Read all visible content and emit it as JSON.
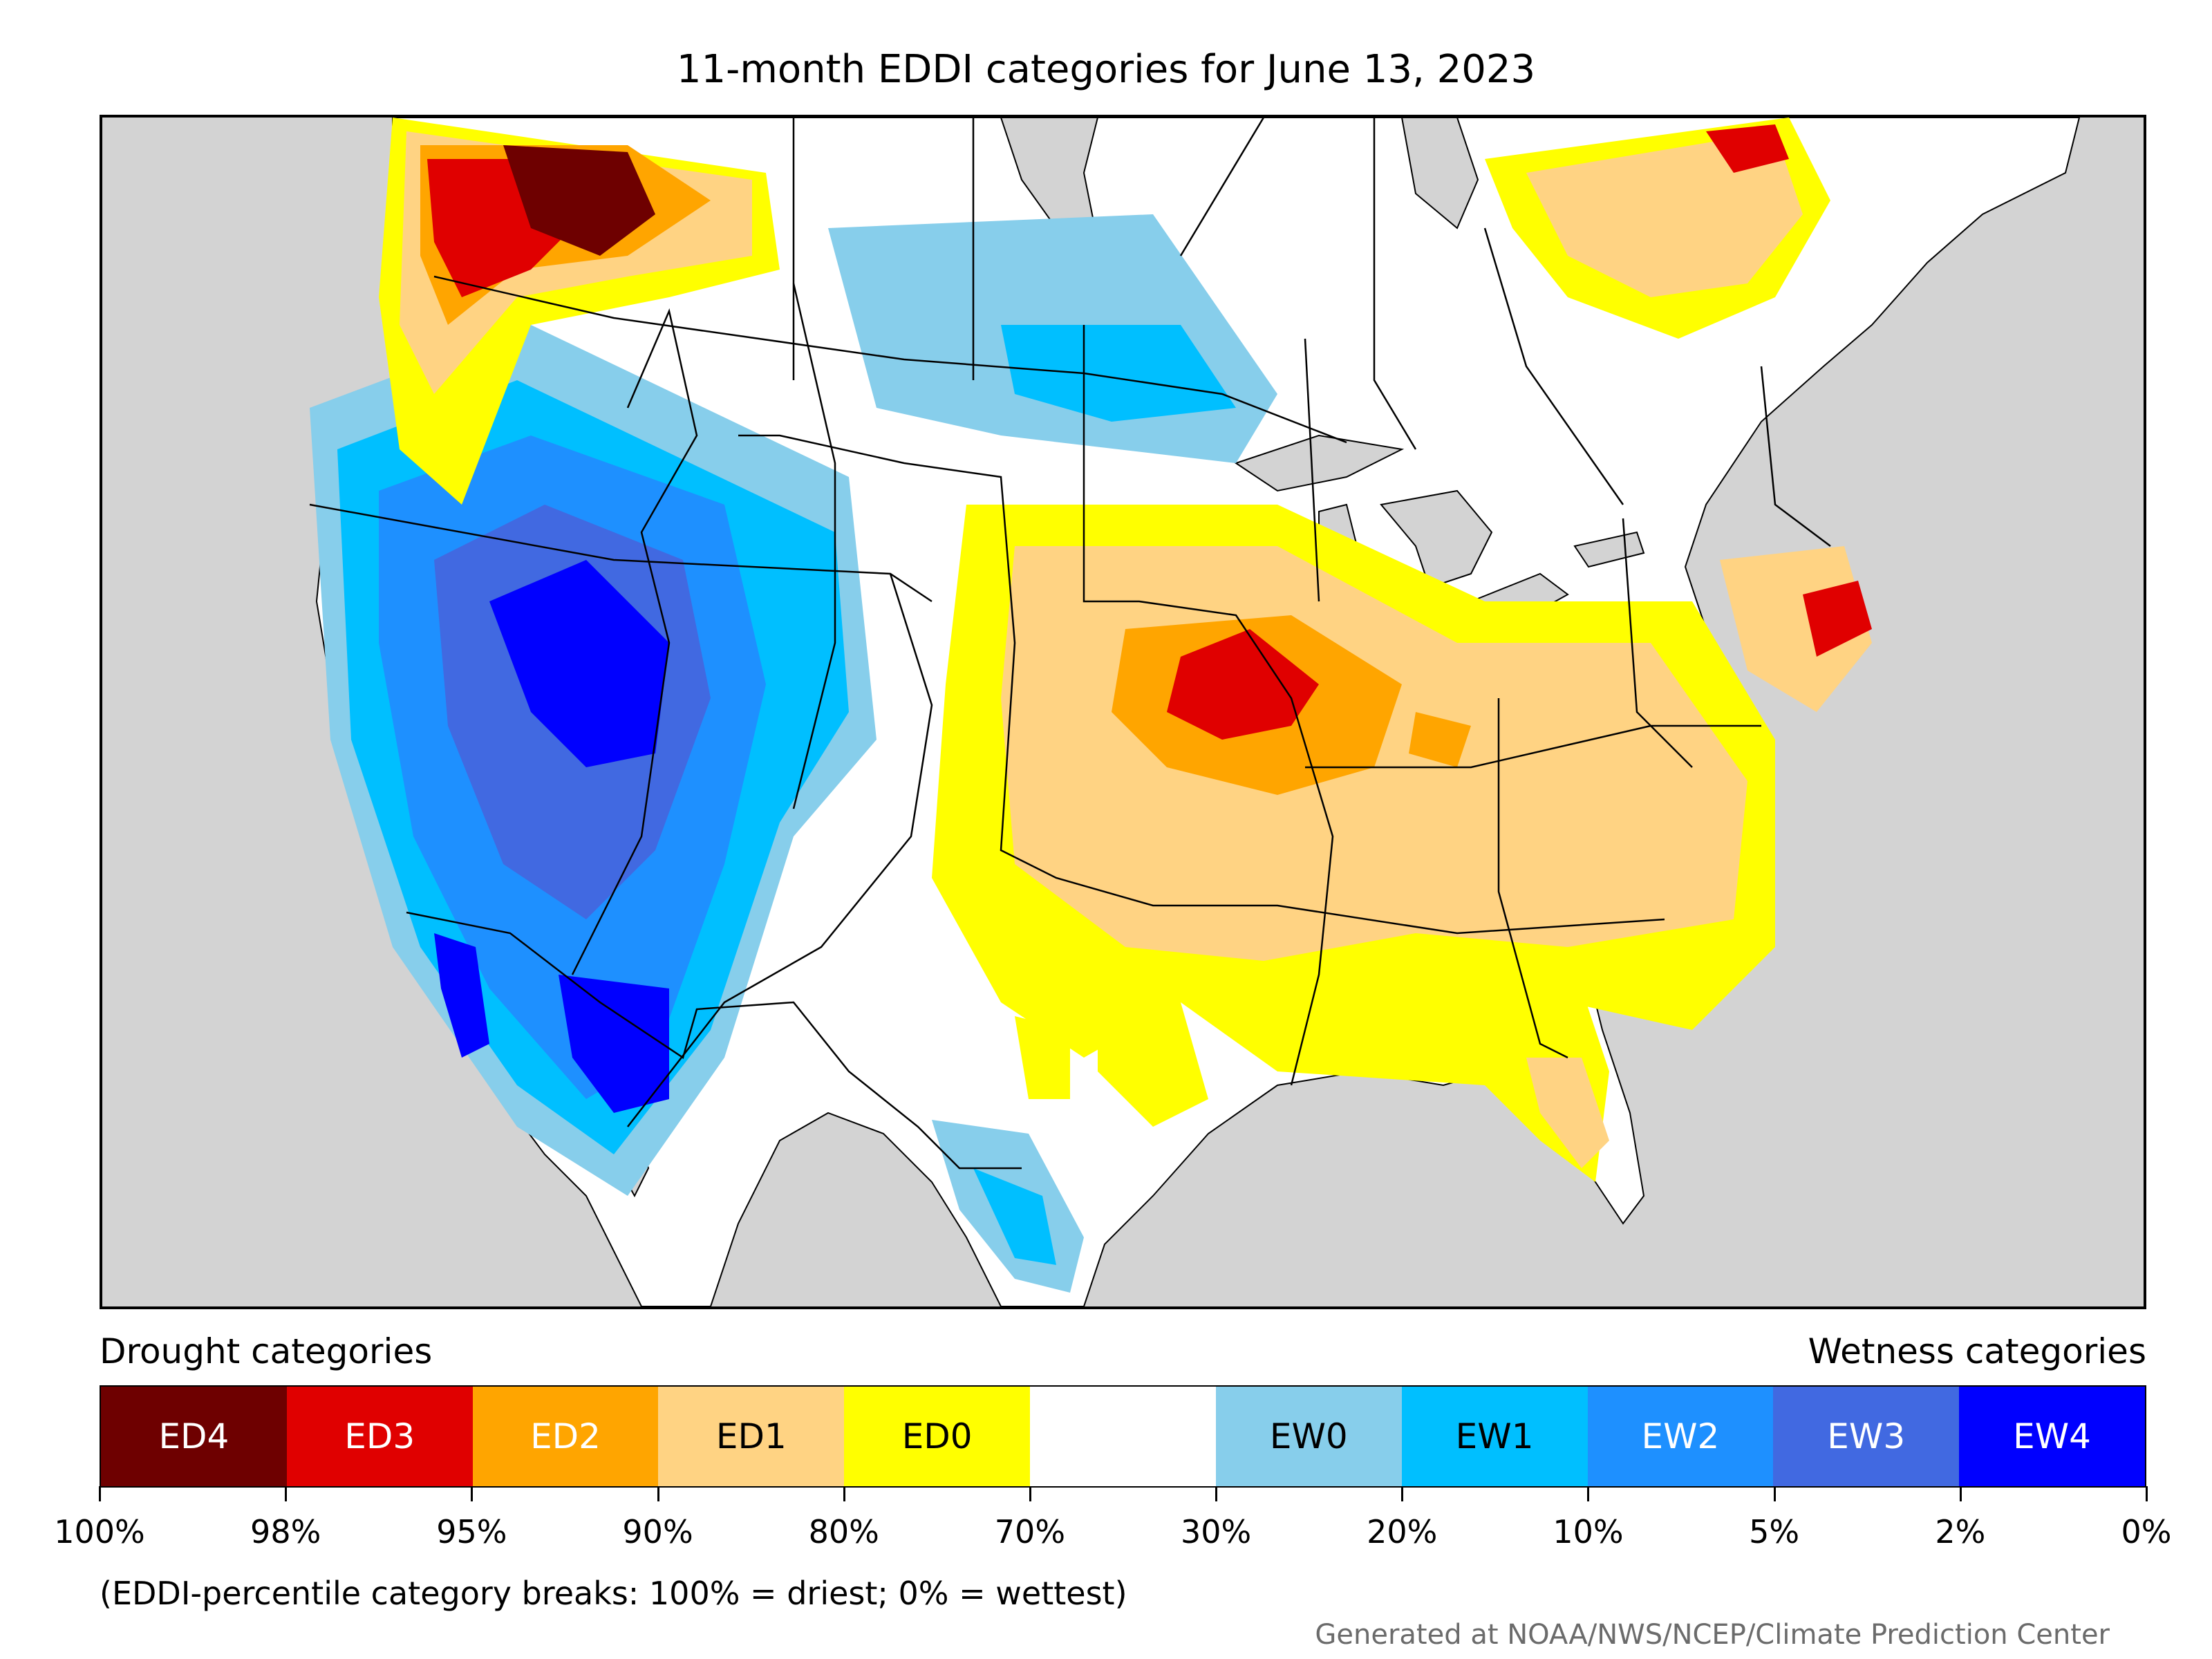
{
  "title": "11-month EDDI categories for June 13, 2023",
  "legend": {
    "drought_heading": "Drought categories",
    "wetness_heading": "Wetness categories",
    "categories": [
      {
        "label": "ED4",
        "color": "#6e0000",
        "text_color": "#ffffff"
      },
      {
        "label": "ED3",
        "color": "#e00000",
        "text_color": "#ffffff"
      },
      {
        "label": "ED2",
        "color": "#ffa500",
        "text_color": "#ffffff"
      },
      {
        "label": "ED1",
        "color": "#ffd383",
        "text_color": "#000000"
      },
      {
        "label": "ED0",
        "color": "#ffff00",
        "text_color": "#000000"
      },
      {
        "label": "",
        "color": "#ffffff",
        "text_color": "#000000"
      },
      {
        "label": "EW0",
        "color": "#87ceeb",
        "text_color": "#000000"
      },
      {
        "label": "EW1",
        "color": "#00bfff",
        "text_color": "#000000"
      },
      {
        "label": "EW2",
        "color": "#1e90ff",
        "text_color": "#ffffff"
      },
      {
        "label": "EW3",
        "color": "#4169e1",
        "text_color": "#ffffff"
      },
      {
        "label": "EW4",
        "color": "#0000ff",
        "text_color": "#ffffff"
      }
    ],
    "ticks": [
      "100%",
      "98%",
      "95%",
      "90%",
      "80%",
      "70%",
      "30%",
      "20%",
      "10%",
      "5%",
      "2%",
      "0%"
    ]
  },
  "note": "(EDDI-percentile category breaks: 100% = driest; 0% = wettest)",
  "credit": "Generated at NOAA/NWS/NCEP/Climate Prediction Center",
  "map": {
    "ocean_color": "#d3d3d3",
    "land_color": "#ffffff",
    "border_color": "#000000"
  }
}
